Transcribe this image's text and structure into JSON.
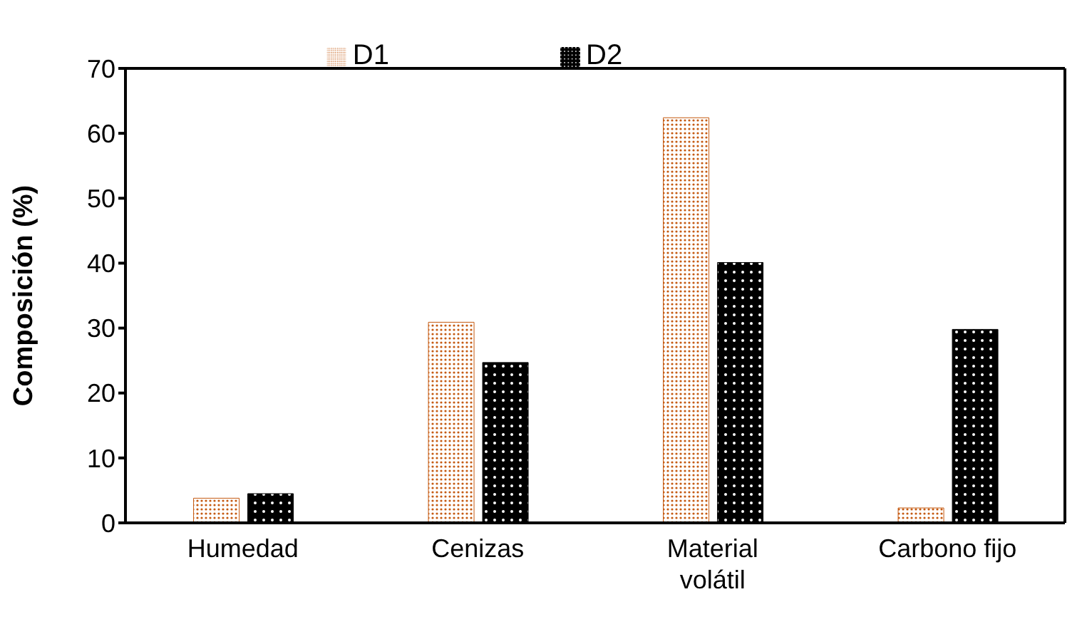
{
  "chart_data": {
    "type": "bar",
    "ylabel": "Composición (%)",
    "categories": [
      "Humedad",
      "Cenizas",
      "Material volátil",
      "Carbono fijo"
    ],
    "series": [
      {
        "name": "D1",
        "color": "#c55a11",
        "values": [
          3.8,
          30.9,
          62.4,
          2.3
        ]
      },
      {
        "name": "D2",
        "color": "#000000",
        "values": [
          4.5,
          24.7,
          40.1,
          29.8
        ]
      }
    ],
    "ylim": [
      0,
      70
    ],
    "yticks": [
      0,
      10,
      20,
      30,
      40,
      50,
      60,
      70
    ],
    "grid": false,
    "legend": "top"
  }
}
